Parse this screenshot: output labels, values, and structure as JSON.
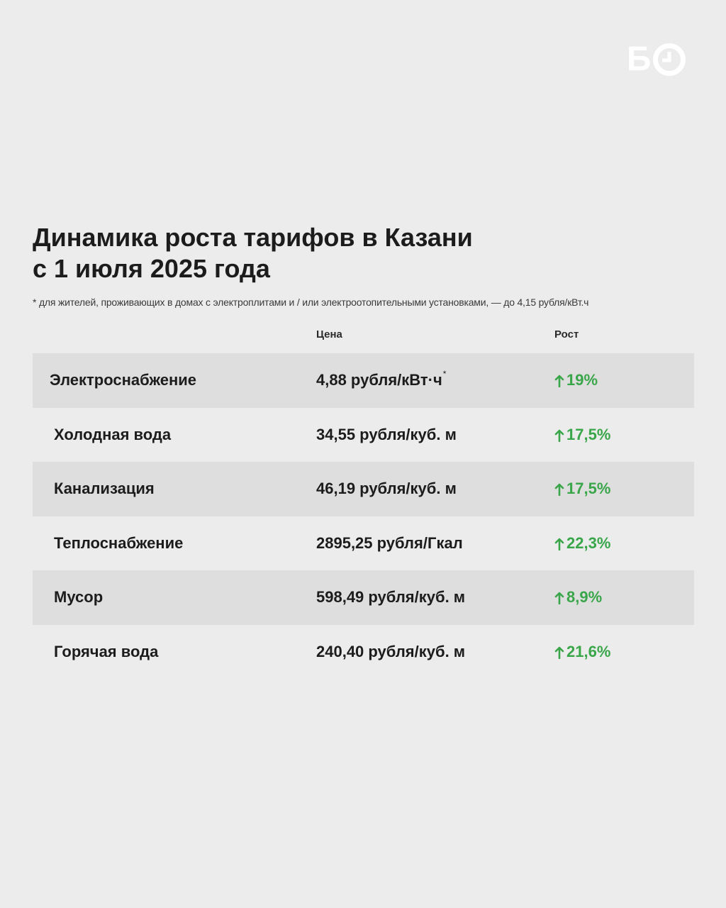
{
  "logo": {
    "text": "Б",
    "icon": "clock-icon"
  },
  "title": {
    "line1": "Динамика роста тарифов в Казани",
    "line2": "с 1 июля 2025 года"
  },
  "footnote": "* для жителей, проживающих в домах с электроплитами и / или электроотопительными установками, — до 4,15 рубля/кВт.ч",
  "columns": {
    "price": "Цена",
    "growth": "Рост"
  },
  "colors": {
    "background": "#ececec",
    "row_shade": "#dedede",
    "growth_green": "#3aa64a",
    "text": "#1c1c1c"
  },
  "rows": [
    {
      "name": "Электроснабжение",
      "price": "4,88 рубля/кВт·ч",
      "price_mark": "*",
      "growth": "19%"
    },
    {
      "name": "Холодная вода",
      "price": "34,55 рубля/куб. м",
      "growth": "17,5%"
    },
    {
      "name": "Канализация",
      "price": "46,19 рубля/куб. м",
      "growth": "17,5%"
    },
    {
      "name": "Теплоснабжение",
      "price": "2895,25 рубля/Гкал",
      "growth": "22,3%"
    },
    {
      "name": "Мусор",
      "price": "598,49 рубля/куб. м",
      "growth": "8,9%"
    },
    {
      "name": "Горячая вода",
      "price": "240,40 рубля/куб. м",
      "growth": "21,6%"
    }
  ]
}
